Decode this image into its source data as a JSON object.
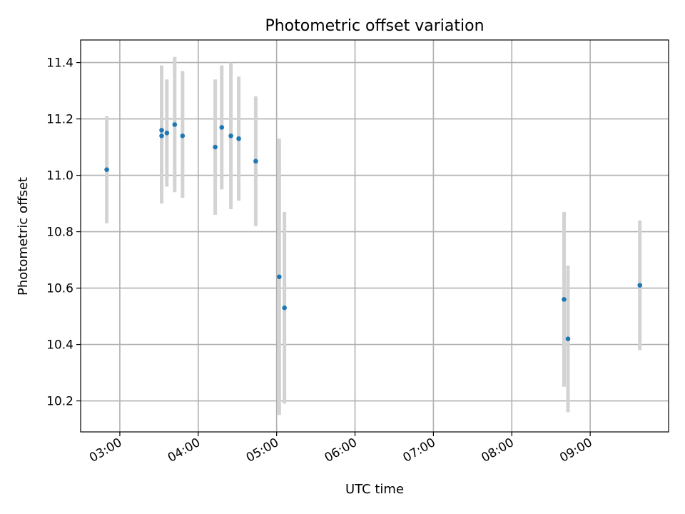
{
  "chart_data": {
    "type": "scatter",
    "title": "Photometric offset variation",
    "xlabel": "UTC time",
    "ylabel": "Photometric offset",
    "xlim": [
      "02:30",
      "10:00"
    ],
    "ylim": [
      10.09,
      11.48
    ],
    "x_ticks": [
      "03:00",
      "04:00",
      "05:00",
      "06:00",
      "07:00",
      "08:00",
      "09:00"
    ],
    "y_ticks": [
      "10.2",
      "10.4",
      "10.6",
      "10.8",
      "11.0",
      "11.2",
      "11.4"
    ],
    "grid": true,
    "marker_color": "#1f77b4",
    "errorbar_color": "#d3d3d3",
    "points": [
      {
        "x": "02:50",
        "y": 11.02,
        "ylow": 10.83,
        "yhigh": 11.21
      },
      {
        "x": "03:32",
        "y": 11.16,
        "ylow": 10.9,
        "yhigh": 11.39
      },
      {
        "x": "03:32",
        "y": 11.14,
        "ylow": 10.93,
        "yhigh": 11.34
      },
      {
        "x": "03:36",
        "y": 11.15,
        "ylow": 10.96,
        "yhigh": 11.34
      },
      {
        "x": "03:42",
        "y": 11.18,
        "ylow": 10.94,
        "yhigh": 11.42
      },
      {
        "x": "03:48",
        "y": 11.14,
        "ylow": 10.92,
        "yhigh": 11.37
      },
      {
        "x": "04:13",
        "y": 11.1,
        "ylow": 10.86,
        "yhigh": 11.34
      },
      {
        "x": "04:18",
        "y": 11.17,
        "ylow": 10.95,
        "yhigh": 11.39
      },
      {
        "x": "04:25",
        "y": 11.14,
        "ylow": 10.88,
        "yhigh": 11.4
      },
      {
        "x": "04:31",
        "y": 11.13,
        "ylow": 10.91,
        "yhigh": 11.35
      },
      {
        "x": "04:44",
        "y": 11.05,
        "ylow": 10.82,
        "yhigh": 11.28
      },
      {
        "x": "05:02",
        "y": 10.64,
        "ylow": 10.15,
        "yhigh": 11.13
      },
      {
        "x": "05:06",
        "y": 10.53,
        "ylow": 10.19,
        "yhigh": 10.87
      },
      {
        "x": "08:40",
        "y": 10.56,
        "ylow": 10.25,
        "yhigh": 10.87
      },
      {
        "x": "08:43",
        "y": 10.42,
        "ylow": 10.16,
        "yhigh": 10.68
      },
      {
        "x": "09:38",
        "y": 10.61,
        "ylow": 10.38,
        "yhigh": 10.84
      }
    ]
  }
}
